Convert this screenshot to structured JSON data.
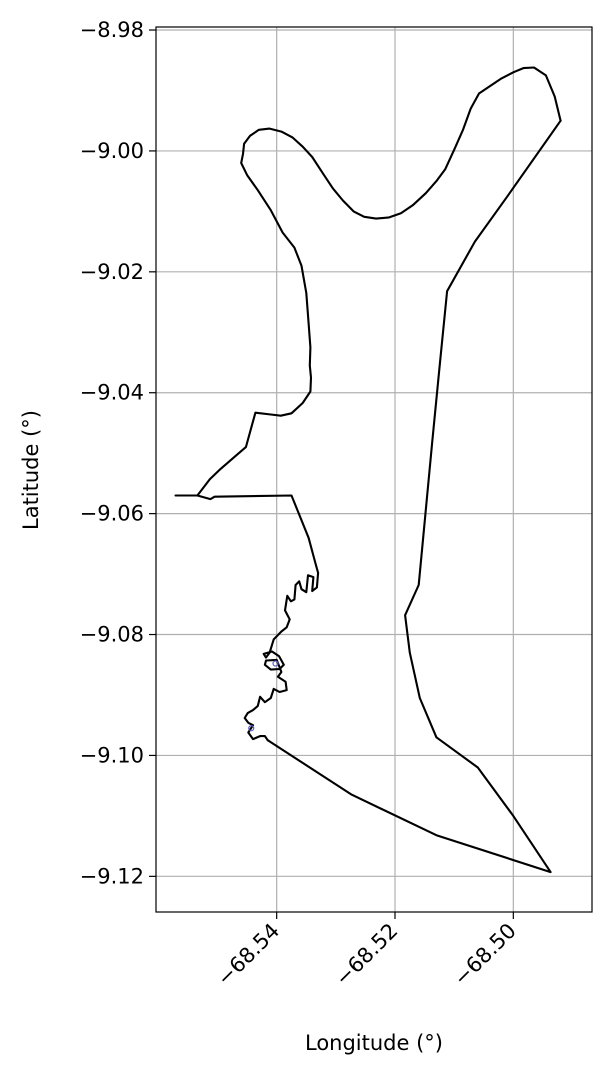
{
  "chart_data": {
    "type": "line",
    "title": "",
    "xlabel": "Longitude (°)",
    "ylabel": "Latitude (°)",
    "xlim": [
      -68.5604,
      -68.4867
    ],
    "ylim": [
      -9.1259,
      -8.9795
    ],
    "grid": true,
    "x_ticks": [
      -68.54,
      -68.52,
      -68.5
    ],
    "x_tick_labels": [
      "−68.54",
      "−68.52",
      "−68.50"
    ],
    "y_ticks": [
      -8.98,
      -9.0,
      -9.02,
      -9.04,
      -9.06,
      -9.08,
      -9.1,
      -9.12
    ],
    "y_tick_labels": [
      "−8.98",
      "−9.00",
      "−9.02",
      "−9.04",
      "−9.06",
      "−9.08",
      "−9.10",
      "−9.12"
    ],
    "series": [
      {
        "color": "#000000",
        "points": [
          [
            -68.492,
            -8.995
          ],
          [
            -68.493,
            -8.991
          ],
          [
            -68.4945,
            -8.9875
          ],
          [
            -68.4965,
            -8.9862
          ],
          [
            -68.4983,
            -8.9863
          ],
          [
            -68.5,
            -8.987
          ],
          [
            -68.502,
            -8.988
          ],
          [
            -68.5043,
            -8.9895
          ],
          [
            -68.5058,
            -8.9905
          ],
          [
            -68.5072,
            -8.993
          ],
          [
            -68.5085,
            -8.9965
          ],
          [
            -68.51,
            -8.9998
          ],
          [
            -68.5115,
            -9.003
          ],
          [
            -68.513,
            -9.005
          ],
          [
            -68.5148,
            -9.007
          ],
          [
            -68.517,
            -9.009
          ],
          [
            -68.519,
            -9.0103
          ],
          [
            -68.521,
            -9.011
          ],
          [
            -68.5232,
            -9.0112
          ],
          [
            -68.5252,
            -9.0109
          ],
          [
            -68.527,
            -9.01
          ],
          [
            -68.5288,
            -9.0082
          ],
          [
            -68.5305,
            -9.0062
          ],
          [
            -68.532,
            -9.004
          ],
          [
            -68.534,
            -9.001
          ],
          [
            -68.5356,
            -8.9993
          ],
          [
            -68.5373,
            -8.9978
          ],
          [
            -68.5392,
            -8.9968
          ],
          [
            -68.5412,
            -8.9963
          ],
          [
            -68.543,
            -8.9965
          ],
          [
            -68.5445,
            -8.9975
          ],
          [
            -68.5455,
            -8.9988
          ],
          [
            -68.5457,
            -9.0005
          ],
          [
            -68.546,
            -9.002
          ],
          [
            -68.545,
            -9.004
          ],
          [
            -68.5432,
            -9.0065
          ],
          [
            -68.541,
            -9.0098
          ],
          [
            -68.539,
            -9.0135
          ],
          [
            -68.537,
            -9.016
          ],
          [
            -68.5358,
            -9.019
          ],
          [
            -68.535,
            -9.0235
          ],
          [
            -68.5346,
            -9.0285
          ],
          [
            -68.5343,
            -9.0325
          ],
          [
            -68.5344,
            -9.0355
          ],
          [
            -68.5342,
            -9.0375
          ],
          [
            -68.5343,
            -9.0398
          ],
          [
            -68.5356,
            -9.0417
          ],
          [
            -68.5375,
            -9.0434
          ],
          [
            -68.5393,
            -9.0438
          ],
          [
            -68.541,
            -9.0436
          ],
          [
            -68.5436,
            -9.0433
          ],
          [
            -68.5452,
            -9.049
          ],
          [
            -68.547,
            -9.0505
          ],
          [
            -68.5497,
            -9.0528
          ],
          [
            -68.5513,
            -9.0543
          ],
          [
            -68.5534,
            -9.057
          ],
          [
            -68.5571,
            -9.057
          ],
          [
            -68.5534,
            -9.057
          ],
          [
            -68.5512,
            -9.0576
          ],
          [
            -68.5505,
            -9.0572
          ],
          [
            -68.5375,
            -9.057
          ],
          [
            -68.5346,
            -9.064
          ],
          [
            -68.5335,
            -9.068
          ],
          [
            -68.533,
            -9.0698
          ]
        ]
      },
      {
        "color": "#000000",
        "points": [
          [
            -68.533,
            -9.0698
          ],
          [
            -68.5332,
            -9.0722
          ],
          [
            -68.534,
            -9.0728
          ],
          [
            -68.5338,
            -9.0705
          ],
          [
            -68.5347,
            -9.0702
          ],
          [
            -68.535,
            -9.073
          ],
          [
            -68.5358,
            -9.0725
          ],
          [
            -68.5362,
            -9.0712
          ],
          [
            -68.5368,
            -9.0718
          ],
          [
            -68.537,
            -9.0742
          ],
          [
            -68.5376,
            -9.0745
          ],
          [
            -68.5382,
            -9.0736
          ],
          [
            -68.5386,
            -9.076
          ],
          [
            -68.5378,
            -9.0775
          ],
          [
            -68.5383,
            -9.0788
          ],
          [
            -68.5392,
            -9.0795
          ],
          [
            -68.5405,
            -9.0808
          ],
          [
            -68.5412,
            -9.083
          ],
          [
            -68.5418,
            -9.0838
          ],
          [
            -68.5422,
            -9.0832
          ],
          [
            -68.5408,
            -9.0828
          ],
          [
            -68.5396,
            -9.0836
          ],
          [
            -68.5388,
            -9.085
          ],
          [
            -68.5395,
            -9.0857
          ],
          [
            -68.541,
            -9.0858
          ],
          [
            -68.542,
            -9.085
          ],
          [
            -68.5418,
            -9.0843
          ],
          [
            -68.54,
            -9.0842
          ],
          [
            -68.5392,
            -9.0862
          ],
          [
            -68.5398,
            -9.087
          ],
          [
            -68.5385,
            -9.0878
          ],
          [
            -68.5383,
            -9.0892
          ],
          [
            -68.5395,
            -9.0895
          ],
          [
            -68.5405,
            -9.089
          ],
          [
            -68.541,
            -9.0905
          ],
          [
            -68.542,
            -9.0912
          ],
          [
            -68.5428,
            -9.0903
          ],
          [
            -68.5432,
            -9.0918
          ],
          [
            -68.544,
            -9.0925
          ],
          [
            -68.5449,
            -9.093
          ],
          [
            -68.5454,
            -9.0938
          ],
          [
            -68.5448,
            -9.0946
          ],
          [
            -68.544,
            -9.095
          ],
          [
            -68.5448,
            -9.0962
          ],
          [
            -68.544,
            -9.0973
          ],
          [
            -68.5428,
            -9.0968
          ],
          [
            -68.542,
            -9.0968
          ],
          [
            -68.5415,
            -9.0975
          ]
        ]
      },
      {
        "color": "#000000",
        "points": [
          [
            -68.5415,
            -9.0975
          ],
          [
            -68.5273,
            -9.1065
          ],
          [
            -68.513,
            -9.1132
          ],
          [
            -68.4937,
            -9.1193
          ],
          [
            -68.5,
            -9.11
          ],
          [
            -68.506,
            -9.102
          ],
          [
            -68.513,
            -9.097
          ],
          [
            -68.5158,
            -9.0905
          ],
          [
            -68.5175,
            -9.083
          ],
          [
            -68.5183,
            -9.0768
          ],
          [
            -68.516,
            -9.0718
          ],
          [
            -68.5137,
            -9.048
          ],
          [
            -68.5125,
            -9.036
          ],
          [
            -68.5112,
            -9.0232
          ],
          [
            -68.5065,
            -9.015
          ],
          [
            -68.501,
            -9.0075
          ],
          [
            -68.492,
            -8.995
          ]
        ]
      }
    ],
    "markers": [
      {
        "x": -68.5443,
        "y": -9.0955,
        "color": "#5b5bd6"
      },
      {
        "x": -68.5402,
        "y": -9.0848,
        "color": "#5b5bd6"
      }
    ]
  }
}
